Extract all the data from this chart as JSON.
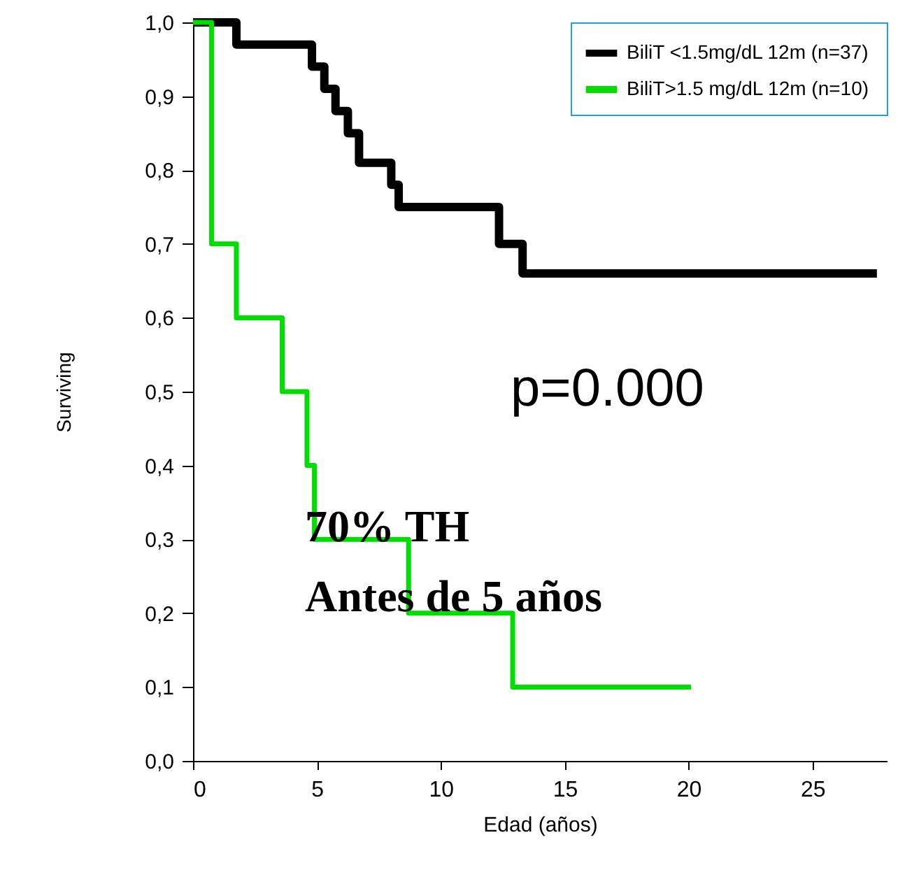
{
  "chart_data": {
    "type": "step",
    "xlabel": "Edad (años)",
    "ylabel": "Surviving",
    "xlim": [
      0,
      28
    ],
    "xticks": [
      0,
      5,
      10,
      15,
      20,
      25
    ],
    "ylim": [
      0,
      1
    ],
    "yticks": [
      {
        "value": 0,
        "label": "0,0"
      },
      {
        "value": 0.1,
        "label": "0,1"
      },
      {
        "value": 0.2,
        "label": "0,2"
      },
      {
        "value": 0.3,
        "label": "0,3"
      },
      {
        "value": 0.4,
        "label": "0,4"
      },
      {
        "value": 0.5,
        "label": "0,5"
      },
      {
        "value": 0.6,
        "label": "0,6"
      },
      {
        "value": 0.7,
        "label": "0,7"
      },
      {
        "value": 0.8,
        "label": "0,8"
      },
      {
        "value": 0.9,
        "label": "0,9"
      },
      {
        "value": 1,
        "label": "1,0"
      }
    ],
    "series": [
      {
        "name": "BiliT <1.5mg/dL  12m (n=37)",
        "color": "#000000",
        "x": [
          0,
          1.75,
          4.8,
          5.3,
          5.75,
          6.25,
          6.7,
          8.0,
          8.3,
          12.35,
          13.3,
          27.6
        ],
        "values": [
          1,
          0.97,
          0.94,
          0.91,
          0.88,
          0.85,
          0.81,
          0.78,
          0.75,
          0.7,
          0.66,
          0.66
        ]
      },
      {
        "name": "BiliT>1.5 mg/dL 12m (n=10)",
        "color": "#00dd00",
        "x": [
          0,
          0.75,
          1.75,
          3.6,
          4.6,
          4.9,
          8.7,
          12.9,
          20.1
        ],
        "values": [
          1,
          0.7,
          0.6,
          0.5,
          0.4,
          0.3,
          0.2,
          0.1,
          0.1
        ]
      }
    ],
    "legend": "top right",
    "grid": false,
    "annotations": [
      "p=0.000",
      "70% TH",
      "Antes de 5 años"
    ]
  }
}
